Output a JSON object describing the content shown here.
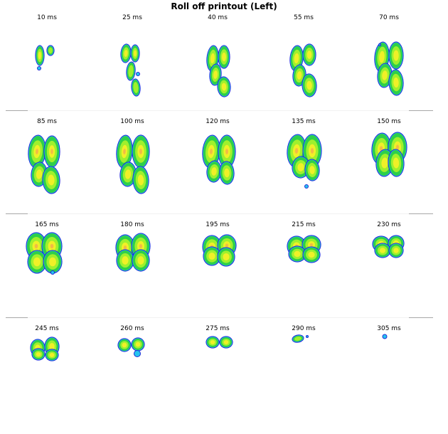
{
  "title": "Roll off printout (Left)",
  "colors": {
    "outer": "#1f2bd6",
    "edge": "#25c4ee",
    "low": "#2ecf4a",
    "mid": "#9ff02d",
    "high": "#f0f028",
    "peak": "#f2bb45"
  },
  "frames": [
    {
      "time": "10 ms",
      "label": "10 ms"
    },
    {
      "time": "25 ms",
      "label": "25 ms"
    },
    {
      "time": "40 ms",
      "label": "40 ms"
    },
    {
      "time": "55 ms",
      "label": "55 ms"
    },
    {
      "time": "70 ms",
      "label": "70 ms"
    },
    {
      "time": "85 ms",
      "label": "85 ms"
    },
    {
      "time": "100 ms",
      "label": "100 ms"
    },
    {
      "time": "120 ms",
      "label": "120 ms"
    },
    {
      "time": "135 ms",
      "label": "135 ms"
    },
    {
      "time": "150 ms",
      "label": "150 ms"
    },
    {
      "time": "165 ms",
      "label": "165 ms"
    },
    {
      "time": "180 ms",
      "label": "180 ms"
    },
    {
      "time": "195 ms",
      "label": "195 ms"
    },
    {
      "time": "215 ms",
      "label": "215 ms"
    },
    {
      "time": "230 ms",
      "label": "230 ms"
    },
    {
      "time": "245 ms",
      "label": "245 ms"
    },
    {
      "time": "260 ms",
      "label": "260 ms"
    },
    {
      "time": "275 ms",
      "label": "275 ms"
    },
    {
      "time": "290 ms",
      "label": "290 ms"
    },
    {
      "time": "305 ms",
      "label": "305 ms"
    }
  ]
}
